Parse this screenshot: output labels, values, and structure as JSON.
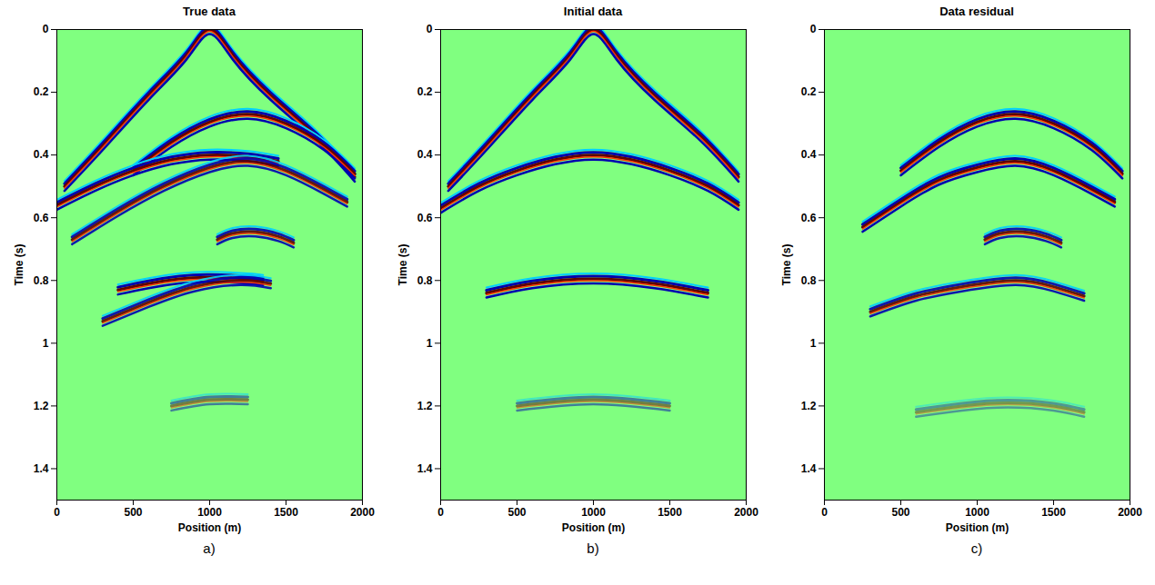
{
  "chart_data": [
    {
      "type": "line",
      "title": "True data",
      "panel_label": "a)",
      "xlabel": "Position (m)",
      "ylabel": "Time (s)",
      "xlim": [
        0,
        2000
      ],
      "ylim": [
        0,
        1.5
      ],
      "xticks": [
        0,
        500,
        1000,
        1500,
        2000
      ],
      "yticks": [
        0,
        0.2,
        0.4,
        0.6,
        0.8,
        1,
        1.2,
        1.4
      ],
      "events": [
        {
          "x": [
            50,
            300,
            600,
            850,
            1000,
            1150,
            1400,
            1700,
            1950
          ],
          "t": [
            0.5,
            0.37,
            0.21,
            0.08,
            0.0,
            0.08,
            0.21,
            0.34,
            0.47
          ],
          "amplitude": 1
        },
        {
          "x": [
            500,
            750,
            1000,
            1250,
            1500,
            1750,
            1950
          ],
          "t": [
            0.45,
            0.36,
            0.295,
            0.27,
            0.3,
            0.37,
            0.46
          ],
          "amplitude": 1
        },
        {
          "x": [
            0,
            250,
            500,
            750,
            1000,
            1250,
            1450
          ],
          "t": [
            0.56,
            0.5,
            0.45,
            0.415,
            0.4,
            0.405,
            0.42
          ],
          "amplitude": 1
        },
        {
          "x": [
            100,
            400,
            700,
            1000,
            1250,
            1500,
            1750,
            1900
          ],
          "t": [
            0.67,
            0.58,
            0.5,
            0.44,
            0.42,
            0.45,
            0.51,
            0.55
          ],
          "amplitude": 0.9
        },
        {
          "x": [
            1050,
            1150,
            1300,
            1450,
            1550
          ],
          "t": [
            0.67,
            0.65,
            0.645,
            0.66,
            0.68
          ],
          "amplitude": 0.9
        },
        {
          "x": [
            400,
            600,
            800,
            1000,
            1250,
            1350
          ],
          "t": [
            0.83,
            0.81,
            0.795,
            0.79,
            0.795,
            0.8
          ],
          "amplitude": 1
        },
        {
          "x": [
            300,
            600,
            900,
            1200,
            1400
          ],
          "t": [
            0.93,
            0.87,
            0.82,
            0.8,
            0.81
          ],
          "amplitude": 0.9
        },
        {
          "x": [
            750,
            1000,
            1250
          ],
          "t": [
            1.2,
            1.18,
            1.18
          ],
          "amplitude": 0.5
        }
      ]
    },
    {
      "type": "line",
      "title": "Initial data",
      "panel_label": "b)",
      "xlabel": "Position (m)",
      "ylabel": "Time (s)",
      "xlim": [
        0,
        2000
      ],
      "ylim": [
        0,
        1.5
      ],
      "xticks": [
        0,
        500,
        1000,
        1500,
        2000
      ],
      "yticks": [
        0,
        0.2,
        0.4,
        0.6,
        0.8,
        1,
        1.2,
        1.4
      ],
      "events": [
        {
          "x": [
            50,
            300,
            600,
            850,
            1000,
            1150,
            1400,
            1700,
            1950
          ],
          "t": [
            0.5,
            0.37,
            0.21,
            0.08,
            0.0,
            0.08,
            0.21,
            0.34,
            0.47
          ],
          "amplitude": 1
        },
        {
          "x": [
            0,
            250,
            500,
            750,
            1000,
            1250,
            1500,
            1750,
            1950
          ],
          "t": [
            0.57,
            0.5,
            0.45,
            0.415,
            0.4,
            0.415,
            0.45,
            0.5,
            0.56
          ],
          "amplitude": 1
        },
        {
          "x": [
            300,
            600,
            1000,
            1400,
            1750
          ],
          "t": [
            0.84,
            0.81,
            0.795,
            0.81,
            0.84
          ],
          "amplitude": 1
        },
        {
          "x": [
            500,
            1000,
            1500
          ],
          "t": [
            1.2,
            1.18,
            1.2
          ],
          "amplitude": 0.5
        }
      ]
    },
    {
      "type": "line",
      "title": "Data residual",
      "panel_label": "c)",
      "xlabel": "Position (m)",
      "ylabel": "Time (s)",
      "xlim": [
        0,
        2000
      ],
      "ylim": [
        0,
        1.5
      ],
      "xticks": [
        0,
        500,
        1000,
        1500,
        2000
      ],
      "yticks": [
        0,
        0.2,
        0.4,
        0.6,
        0.8,
        1,
        1.2,
        1.4
      ],
      "events": [
        {
          "x": [
            500,
            750,
            1000,
            1250,
            1500,
            1750,
            1950
          ],
          "t": [
            0.45,
            0.36,
            0.295,
            0.27,
            0.3,
            0.37,
            0.46
          ],
          "amplitude": 1
        },
        {
          "x": [
            250,
            500,
            750,
            1000,
            1250,
            1500,
            1750,
            1900
          ],
          "t": [
            0.63,
            0.55,
            0.48,
            0.44,
            0.42,
            0.45,
            0.51,
            0.55
          ],
          "amplitude": 1
        },
        {
          "x": [
            1050,
            1150,
            1300,
            1450,
            1550
          ],
          "t": [
            0.67,
            0.65,
            0.645,
            0.66,
            0.68
          ],
          "amplitude": 0.9
        },
        {
          "x": [
            300,
            600,
            900,
            1250,
            1500,
            1700
          ],
          "t": [
            0.9,
            0.85,
            0.82,
            0.8,
            0.82,
            0.85
          ],
          "amplitude": 0.9
        },
        {
          "x": [
            600,
            900,
            1200,
            1500,
            1700
          ],
          "t": [
            1.22,
            1.2,
            1.19,
            1.2,
            1.22
          ],
          "amplitude": 0.4
        }
      ]
    }
  ]
}
